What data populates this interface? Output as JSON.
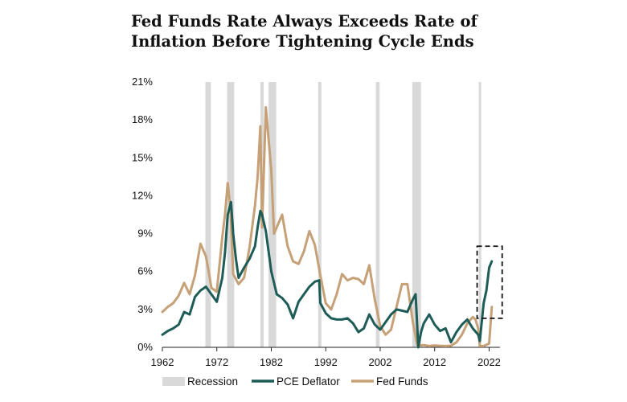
{
  "title_lines": [
    "Fed Funds Rate Always Exceeds Rate of",
    "Inflation Before Tightening Cycle Ends"
  ],
  "chart_data": {
    "type": "line",
    "title": "Fed Funds Rate Always Exceeds Rate of Inflation Before Tightening Cycle Ends",
    "xlabel": "",
    "ylabel": "",
    "xlim": [
      1962,
      2024
    ],
    "ylim": [
      0,
      21
    ],
    "x_ticks": [
      "1962",
      "1972",
      "1982",
      "1992",
      "2002",
      "2012",
      "2022"
    ],
    "y_ticks": [
      "0%",
      "3%",
      "6%",
      "9%",
      "12%",
      "15%",
      "18%",
      "21%"
    ],
    "legend_position": "bottom",
    "grid": false,
    "legend": [
      "Recession",
      "PCE Deflator",
      "Fed Funds"
    ],
    "recessions": [
      [
        1969.9,
        1970.9
      ],
      [
        1973.9,
        1975.2
      ],
      [
        1980.0,
        1980.6
      ],
      [
        1981.5,
        1982.9
      ],
      [
        1990.6,
        1991.2
      ],
      [
        2001.2,
        2001.9
      ],
      [
        2007.9,
        2009.5
      ],
      [
        2020.1,
        2020.4
      ]
    ],
    "annotation": {
      "type": "dashed-box",
      "x": [
        2019.8,
        2024.4
      ],
      "y": [
        2.3,
        8.0
      ]
    },
    "colors": {
      "recession": "#d9d9d9",
      "pce": "#1d5c57",
      "fed": "#c6a077"
    },
    "series": [
      {
        "name": "PCE Deflator",
        "x": [
          1962,
          1963,
          1964,
          1965,
          1966,
          1967,
          1968,
          1969,
          1970,
          1971,
          1972,
          1973,
          1973.5,
          1974,
          1974.6,
          1975,
          1975.5,
          1976,
          1977,
          1978,
          1979,
          1979.5,
          1980,
          1980.3,
          1981,
          1982,
          1983,
          1984,
          1985,
          1986,
          1987,
          1988,
          1989,
          1990,
          1990.8,
          1991,
          1992,
          1993,
          1994,
          1995,
          1996,
          1997,
          1998,
          1999,
          2000,
          2001,
          2002,
          2003,
          2004,
          2005,
          2006,
          2007,
          2008,
          2008.5,
          2009,
          2009.5,
          2010,
          2011,
          2012,
          2013,
          2014,
          2015,
          2016,
          2017,
          2018,
          2019,
          2020,
          2020.3,
          2021,
          2021.5,
          2022,
          2022.5
        ],
        "y": [
          1.0,
          1.3,
          1.5,
          1.8,
          2.8,
          2.6,
          4.0,
          4.5,
          4.8,
          4.2,
          3.6,
          5.5,
          7.5,
          10.5,
          11.5,
          9.0,
          7.0,
          5.5,
          6.3,
          7.0,
          8.0,
          9.5,
          10.8,
          10.5,
          9.2,
          6.0,
          4.2,
          3.9,
          3.4,
          2.3,
          3.6,
          4.2,
          4.8,
          5.2,
          5.3,
          3.5,
          2.7,
          2.3,
          2.2,
          2.2,
          2.3,
          1.9,
          1.2,
          1.5,
          2.6,
          1.8,
          1.4,
          2.0,
          2.6,
          3.0,
          2.9,
          2.8,
          3.8,
          4.2,
          0.0,
          1.2,
          1.9,
          2.6,
          1.8,
          1.3,
          1.5,
          0.4,
          1.2,
          1.8,
          2.2,
          1.5,
          1.0,
          0.5,
          3.5,
          4.5,
          6.3,
          6.8
        ]
      },
      {
        "name": "Fed Funds",
        "x": [
          1962,
          1963,
          1964,
          1965,
          1966,
          1967,
          1968,
          1969,
          1970,
          1970.5,
          1971,
          1972,
          1973,
          1973.5,
          1974,
          1974.5,
          1975,
          1976,
          1977,
          1978,
          1979,
          1979.5,
          1980,
          1980.3,
          1980.5,
          1981,
          1981.5,
          1982,
          1982.5,
          1983,
          1984,
          1985,
          1986,
          1987,
          1988,
          1989,
          1990,
          1991,
          1992,
          1993,
          1994,
          1995,
          1996,
          1997,
          1998,
          1999,
          2000,
          2001,
          2002,
          2003,
          2004,
          2005,
          2006,
          2007,
          2008,
          2008.8,
          2009,
          2010,
          2011,
          2012,
          2013,
          2014,
          2015,
          2016,
          2017,
          2018,
          2019,
          2019.5,
          2020,
          2020.3,
          2021,
          2022,
          2022.5
        ],
        "y": [
          2.8,
          3.2,
          3.5,
          4.1,
          5.1,
          4.2,
          5.7,
          8.2,
          7.2,
          6.0,
          4.7,
          4.4,
          8.7,
          10.5,
          13.0,
          11.0,
          5.8,
          5.0,
          5.5,
          7.9,
          11.2,
          13.5,
          17.5,
          9.5,
          12.0,
          19.0,
          16.5,
          14.0,
          9.0,
          9.5,
          10.5,
          8.0,
          6.8,
          6.6,
          7.6,
          9.2,
          8.1,
          5.7,
          3.5,
          3.0,
          4.2,
          5.8,
          5.3,
          5.5,
          5.4,
          5.0,
          6.5,
          3.8,
          1.7,
          1.0,
          1.4,
          3.2,
          5.0,
          5.0,
          2.0,
          0.2,
          0.15,
          0.18,
          0.1,
          0.15,
          0.12,
          0.1,
          0.13,
          0.4,
          1.0,
          1.9,
          2.4,
          2.2,
          1.5,
          0.1,
          0.1,
          0.3,
          3.2
        ]
      }
    ]
  }
}
